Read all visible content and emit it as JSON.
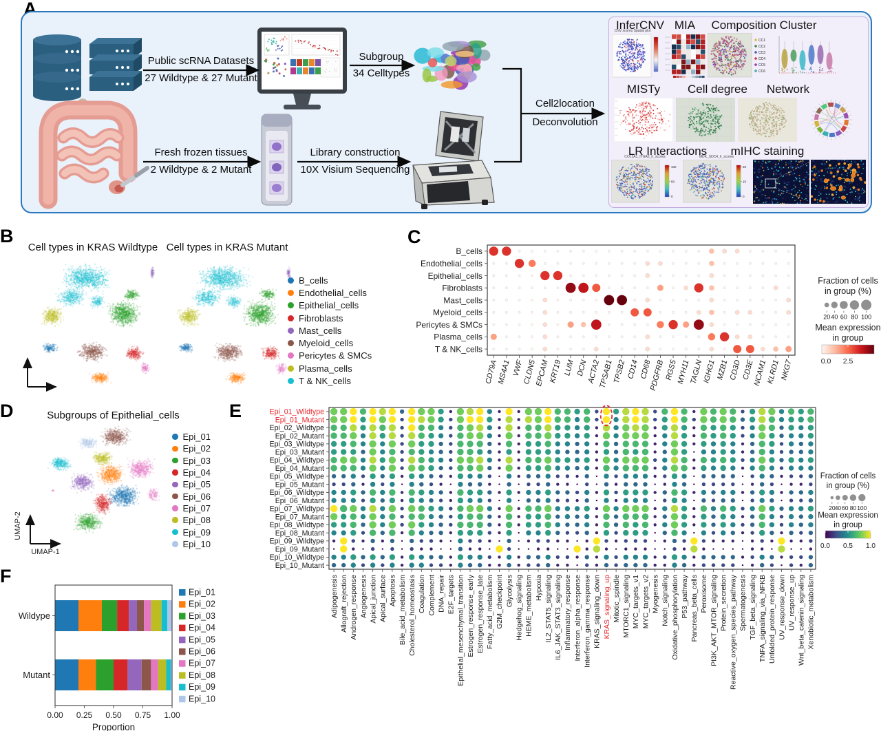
{
  "panels": {
    "a": "A",
    "b": "B",
    "c": "C",
    "d": "D",
    "e": "E",
    "f": "F"
  },
  "panelA": {
    "arrow1_top": "Public scRNA Datasets",
    "arrow1_bottom": "27 Wildtype & 27 Mutant",
    "arrow2_top": "Subgroup",
    "arrow2_bottom": "34 Celltypes",
    "arrow3_top": "Fresh frozen tissues",
    "arrow3_bottom": "2 Wildtype & 2 Mutant",
    "arrow4_top": "Library construction",
    "arrow4_bottom": "10X Visium Sequencing",
    "merge_top": "Cell2location",
    "merge_bottom": "Deconvolution",
    "icons": [
      "database-stack",
      "intestine",
      "swab",
      "monitor",
      "tissue-tube",
      "visium-sequencer",
      "umap-collage"
    ],
    "results": {
      "row1_titles": [
        "InferCNV",
        "MIA",
        "Composition Cluster"
      ],
      "row2_titles": [
        "MISTy",
        "Cell degree",
        "Network"
      ],
      "row3_titles": [
        "LR Interactions",
        "mIHC staining"
      ],
      "cnv_caption": "CNV scores Spatial plot",
      "lr_captions": [
        "COL1A1_ITGA2_lr_scores",
        "MDK_SDC4_lr_scores"
      ],
      "lr_cbar1": [
        "100",
        "50",
        "0"
      ],
      "lr_cbar2": [
        "20",
        "15",
        "0"
      ],
      "composition_legend": [
        "CC1",
        "CC2",
        "CC3",
        "CC4",
        "CC5",
        "CC6"
      ]
    }
  },
  "chart_data": [
    {
      "panel": "B",
      "type": "scatter",
      "titles": [
        "Cell types in KRAS Wildtype",
        "Cell types in KRAS Mutant"
      ],
      "legend": [
        {
          "label": "B_cells",
          "color": "#1f77b4"
        },
        {
          "label": "Endothelial_cells",
          "color": "#ff7f0e"
        },
        {
          "label": "Epithelial_cells",
          "color": "#2ca02c"
        },
        {
          "label": "Fibroblasts",
          "color": "#d62728"
        },
        {
          "label": "Mast_cells",
          "color": "#9467bd"
        },
        {
          "label": "Myeloid_cells",
          "color": "#8c564b"
        },
        {
          "label": "Pericytes & SMCs",
          "color": "#e377c2"
        },
        {
          "label": "Plasma_cells",
          "color": "#bcbd22"
        },
        {
          "label": "T & NK_cells",
          "color": "#17becf"
        }
      ],
      "clusters": [
        {
          "name": "T & NK_cells",
          "color": "#17becf",
          "blobs": [
            [
              0.42,
              0.16,
              0.23,
              0.11,
              900
            ],
            [
              0.3,
              0.3,
              0.13,
              0.08,
              350
            ],
            [
              0.5,
              0.33,
              0.07,
              0.06,
              150
            ]
          ]
        },
        {
          "name": "Mast_cells",
          "color": "#9467bd",
          "blobs": [
            [
              0.915,
              0.12,
              0.018,
              0.05,
              70
            ]
          ]
        },
        {
          "name": "Epithelial_cells",
          "color": "#2ca02c",
          "blobs": [
            [
              0.7,
              0.42,
              0.14,
              0.11,
              800
            ],
            [
              0.76,
              0.28,
              0.07,
              0.05,
              180
            ]
          ]
        },
        {
          "name": "Plasma_cells",
          "color": "#bcbd22",
          "blobs": [
            [
              0.16,
              0.44,
              0.1,
              0.08,
              380
            ]
          ]
        },
        {
          "name": "B_cells",
          "color": "#1f77b4",
          "blobs": [
            [
              0.14,
              0.67,
              0.07,
              0.04,
              170
            ]
          ]
        },
        {
          "name": "Myeloid_cells",
          "color": "#8c564b",
          "blobs": [
            [
              0.46,
              0.7,
              0.13,
              0.08,
              520
            ]
          ]
        },
        {
          "name": "Fibroblasts",
          "color": "#d62728",
          "blobs": [
            [
              0.78,
              0.71,
              0.08,
              0.06,
              270
            ]
          ]
        },
        {
          "name": "Pericytes & SMCs",
          "color": "#e377c2",
          "blobs": [
            [
              0.86,
              0.82,
              0.045,
              0.05,
              110
            ]
          ]
        },
        {
          "name": "Endothelial_cells",
          "color": "#ff7f0e",
          "blobs": [
            [
              0.52,
              0.89,
              0.09,
              0.05,
              260
            ]
          ]
        }
      ]
    },
    {
      "panel": "C",
      "type": "dotplot",
      "colormap": "reds",
      "rows": [
        "B_cells",
        "Endothelial_cells",
        "Epithelial_cells",
        "Fibroblasts",
        "Mast_cells",
        "Myeloid_cells",
        "Pericytes & SMCs",
        "Plasma_cells",
        "T & NK_cells"
      ],
      "cols": [
        "CD79A",
        "MS4A1",
        "VWF",
        "CLDN5",
        "EPCAM",
        "KRT19",
        "LUM",
        "DCN",
        "ACTA2",
        "TPSAB1",
        "TPSB2",
        "CD14",
        "CD68",
        "PDGFRB",
        "RGS5",
        "MYH11",
        "TAGLN",
        "IGHG1",
        "MZB1",
        "CD3D",
        "CD3E",
        "NCAM1",
        "KLRD1",
        "NKG7"
      ],
      "expr": [
        "660000000000000002110000",
        "006400000000110002000000",
        "000066000000100001000000",
        "000000875000030162000010",
        "000010000990100001000001",
        "000010000005500012011001",
        "000010327000046381000000",
        "300010000000100004611000",
        "000010001000100001055123"
      ],
      "frac": [
        "881111111111111114331111",
        "118611111111331114111111",
        "111188111111311113111111",
        "111111997111151384111131",
        "111131111991311113111113",
        "111131111117711134133113",
        "111131549111168593111111",
        "511131111111311116833111",
        "111131113111311113177345"
      ],
      "legend": {
        "fraction_title": [
          "Fraction of cells",
          "in group (%)"
        ],
        "fraction_ticks": [
          "20",
          "40",
          "60",
          "80",
          "100"
        ],
        "expression_title": [
          "Mean expression",
          "in group"
        ],
        "expression_ticks": [
          "0.0",
          "2.5"
        ]
      }
    },
    {
      "panel": "D",
      "type": "scatter",
      "title": "Subgroups of Epithelial_cells",
      "xlabel": "UMAP-1",
      "ylabel": "UMAP-2",
      "legend": [
        {
          "label": "Epi_01",
          "color": "#1f77b4"
        },
        {
          "label": "Epi_02",
          "color": "#ff7f0e"
        },
        {
          "label": "Epi_03",
          "color": "#2ca02c"
        },
        {
          "label": "Epi_04",
          "color": "#d62728"
        },
        {
          "label": "Epi_05",
          "color": "#9467bd"
        },
        {
          "label": "Epi_06",
          "color": "#8c564b"
        },
        {
          "label": "Epi_07",
          "color": "#e377c2"
        },
        {
          "label": "Epi_08",
          "color": "#bcbd22"
        },
        {
          "label": "Epi_09",
          "color": "#17becf"
        },
        {
          "label": "Epi_10",
          "color": "#aec7e8"
        }
      ],
      "clusters": [
        {
          "name": "Epi_06",
          "color": "#8c564b",
          "blobs": [
            [
              0.56,
              0.12,
              0.12,
              0.08,
              520
            ]
          ]
        },
        {
          "name": "Epi_10",
          "color": "#aec7e8",
          "blobs": [
            [
              0.37,
              0.17,
              0.08,
              0.05,
              220
            ]
          ]
        },
        {
          "name": "Epi_08",
          "color": "#bcbd22",
          "blobs": [
            [
              0.47,
              0.28,
              0.09,
              0.06,
              320
            ]
          ]
        },
        {
          "name": "Epi_09",
          "color": "#17becf",
          "blobs": [
            [
              0.17,
              0.32,
              0.09,
              0.06,
              320
            ]
          ]
        },
        {
          "name": "Epi_05",
          "color": "#9467bd",
          "blobs": [
            [
              0.33,
              0.46,
              0.1,
              0.08,
              420
            ]
          ]
        },
        {
          "name": "Epi_02",
          "color": "#ff7f0e",
          "blobs": [
            [
              0.53,
              0.4,
              0.11,
              0.09,
              550
            ]
          ]
        },
        {
          "name": "Epi_07",
          "color": "#e377c2",
          "blobs": [
            [
              0.74,
              0.36,
              0.11,
              0.09,
              480
            ],
            [
              0.83,
              0.55,
              0.05,
              0.06,
              120
            ],
            [
              0.12,
              0.52,
              0.012,
              0.008,
              12
            ]
          ]
        },
        {
          "name": "Epi_01",
          "color": "#1f77b4",
          "blobs": [
            [
              0.62,
              0.56,
              0.13,
              0.1,
              650
            ]
          ]
        },
        {
          "name": "Epi_04",
          "color": "#d62728",
          "blobs": [
            [
              0.47,
              0.62,
              0.08,
              0.09,
              380
            ]
          ]
        },
        {
          "name": "Epi_03",
          "color": "#2ca02c",
          "blobs": [
            [
              0.37,
              0.76,
              0.11,
              0.08,
              480
            ]
          ]
        }
      ]
    },
    {
      "panel": "E",
      "type": "dotplot",
      "colormap": "viridis",
      "row_red": [
        0,
        1
      ],
      "col_red": [
        28
      ],
      "annotation": {
        "type": "dashed-ellipse",
        "col": 28,
        "rows": [
          0,
          1
        ],
        "color": "#e8262a"
      },
      "rows": [
        "Epi_01_Wildtype",
        "Epi_01_Mutant",
        "Epi_02_Wildtype",
        "Epi_02_Mutant",
        "Epi_03_Wildtype",
        "Epi_03_Mutant",
        "Epi_04_Wildtype",
        "Epi_04_Mutant",
        "Epi_05_Wildtype",
        "Epi_05_Mutant",
        "Epi_06_Wildtype",
        "Epi_06_Mutant",
        "Epi_07_Wildtype",
        "Epi_07_Mutant",
        "Epi_08_Wildtype",
        "Epi_08_Mutant",
        "Epi_09_Wildtype",
        "Epi_09_Mutant",
        "Epi_10_Wildtype",
        "Epi_10_Mutant"
      ],
      "cols": [
        "Adipogenesis",
        "Allograft_rejection",
        "Androgen_response",
        "Angiogenesis",
        "Apical_junction",
        "Apical_surface",
        "Apoptosis",
        "Bile_acid_metabolism",
        "Cholesterol_homeostasis",
        "Coagulation",
        "Complement",
        "DNA_repair",
        "E2F_targets",
        "Epithelial_mesenchymal_transition",
        "Estrogen_response_early",
        "Estrogen_response_late",
        "Fatty_acid_metabolism",
        "G2M_checkpoint",
        "Glycolysis",
        "Hedgehog_signaling",
        "HEME_metabolism",
        "Hypoxia",
        "IL2_STAT5_signaling",
        "IL6_JAK_STAT3_signaling",
        "Inflammatory_response",
        "Interferon_alpha_response",
        "Interferon_gamma_response",
        "KRAS_signaling_down",
        "KRAS_signaling_up",
        "Mitotic_spindle",
        "MTORC1_signaling",
        "MYC_targets_v1",
        "MYC_targets_v2",
        "Myogenesis",
        "Notch_signaling",
        "Oxidative_phosphorylation",
        "P53_pathway",
        "Pancreas_beta_cells",
        "Peroxisome",
        "PI3K_AKT_MTOR_signaling",
        "Protein_secretion",
        "Reactive_oxygen_species_pathway",
        "Spermatogenesis",
        "TGF_beta_signaling",
        "TNFA_signaling_via_NFKB",
        "Unfolded_protein_response",
        "UV_response_down",
        "UV_response_up",
        "Wnt_beta_catenin_signaling",
        "Xenobiotic_metabolism"
      ],
      "expr": [
        "77969893977517894191779665629589826961767625874656",
        "77959792987527995181879664629489825962767635864556",
        "66858682966426784181668554518478715851656524763545",
        "66748582865426774171667554517477714851656524753445",
        "55647472755326663161556443416366614751545413652434",
        "55537462654326653151555433415365613750445413642334",
        "67748572865427784181667554517477724861656524753545",
        "66647472765326673171556443416466614761545414642444",
        "33425351543215442041334221304244412540333302431223",
        "22314240432104331030223110203133301430222201320112",
        "44536461654316553151445332415255513651434413541334",
        "44425351543215442040334221304144402540323302430223",
        "96748472765426774171667444517477714851646524753445",
        "75647462664325663161556343416366613751535413642434",
        "55637472754326663161556433416365614751535423642434",
        "44526361643315552150445322315255503640424312531323",
        "19213130322104221030122110192122201329211101219112",
        "09102020211003110920011009181011100218100001108001",
        "44535351543315442141334221314244412541333312431223",
        "33424241442214331131223110213233311431222201320213"
      ],
      "frac": [
        "99989995999739996393999887849799948983989847996878",
        "99979994999749997393999886849699947984989857986778",
        "88979894988648996393889776739699937973878746985767",
        "88969794987648996393889776739699936973878746975667",
        "77869694977548885383778665638588836973767635874656",
        "77759684876548875373777655637587835971667635864556",
        "89969794987649996393889776739699946983878746975767",
        "88869694987548895393778665638688836983767636864666",
        "55647573765437664163556443516466634761555514653445",
        "44536461654316553151445331415355513651444413541334",
        "66758683876538775373667554637477735873656635763556",
        "66647573765437664161556443516366614761545514651445",
        "99969694987648996393889666739699936973868746975667",
        "97869684886547885383778565638588835973757635864656",
        "77859694976548885383778655638587836973757645864656",
        "66748583865537774371667544537477715861646534753545",
        "39435351544316443151344331394344413549433313439334",
        "19314141433115331941133119393133311439311113319113",
        "66757573765537664363556443536466634763555534653445",
        "55646463664436553353445331435455533653444413541435"
      ],
      "legend": {
        "fraction_title": [
          "Fraction of cells",
          "in group (%)"
        ],
        "fraction_ticks": [
          "20",
          "40",
          "60",
          "80",
          "100"
        ],
        "expression_title": [
          "Mean expression",
          "in group"
        ],
        "expression_ticks": [
          "0.0",
          "0.5",
          "1.0"
        ]
      }
    },
    {
      "panel": "F",
      "type": "stacked-bar-horizontal",
      "categories": [
        "Wildype",
        "Mutant"
      ],
      "xticks": [
        "0.00",
        "0.25",
        "0.50",
        "0.75",
        "1.00"
      ],
      "xlabel": "Proportion",
      "xlim": [
        0,
        1
      ],
      "series": [
        {
          "name": "Epi_01",
          "color": "#1f77b4",
          "values": [
            0.2,
            0.2
          ]
        },
        {
          "name": "Epi_02",
          "color": "#ff7f0e",
          "values": [
            0.2,
            0.15
          ]
        },
        {
          "name": "Epi_03",
          "color": "#2ca02c",
          "values": [
            0.13,
            0.15
          ]
        },
        {
          "name": "Epi_04",
          "color": "#d62728",
          "values": [
            0.1,
            0.12
          ]
        },
        {
          "name": "Epi_05",
          "color": "#9467bd",
          "values": [
            0.07,
            0.12
          ]
        },
        {
          "name": "Epi_06",
          "color": "#8c564b",
          "values": [
            0.06,
            0.08
          ]
        },
        {
          "name": "Epi_07",
          "color": "#e377c2",
          "values": [
            0.06,
            0.06
          ]
        },
        {
          "name": "Epi_08",
          "color": "#bcbd22",
          "values": [
            0.09,
            0.07
          ]
        },
        {
          "name": "Epi_09",
          "color": "#17becf",
          "values": [
            0.05,
            0.04
          ]
        },
        {
          "name": "Epi_10",
          "color": "#aec7e8",
          "values": [
            0.04,
            0.01
          ]
        }
      ]
    }
  ]
}
